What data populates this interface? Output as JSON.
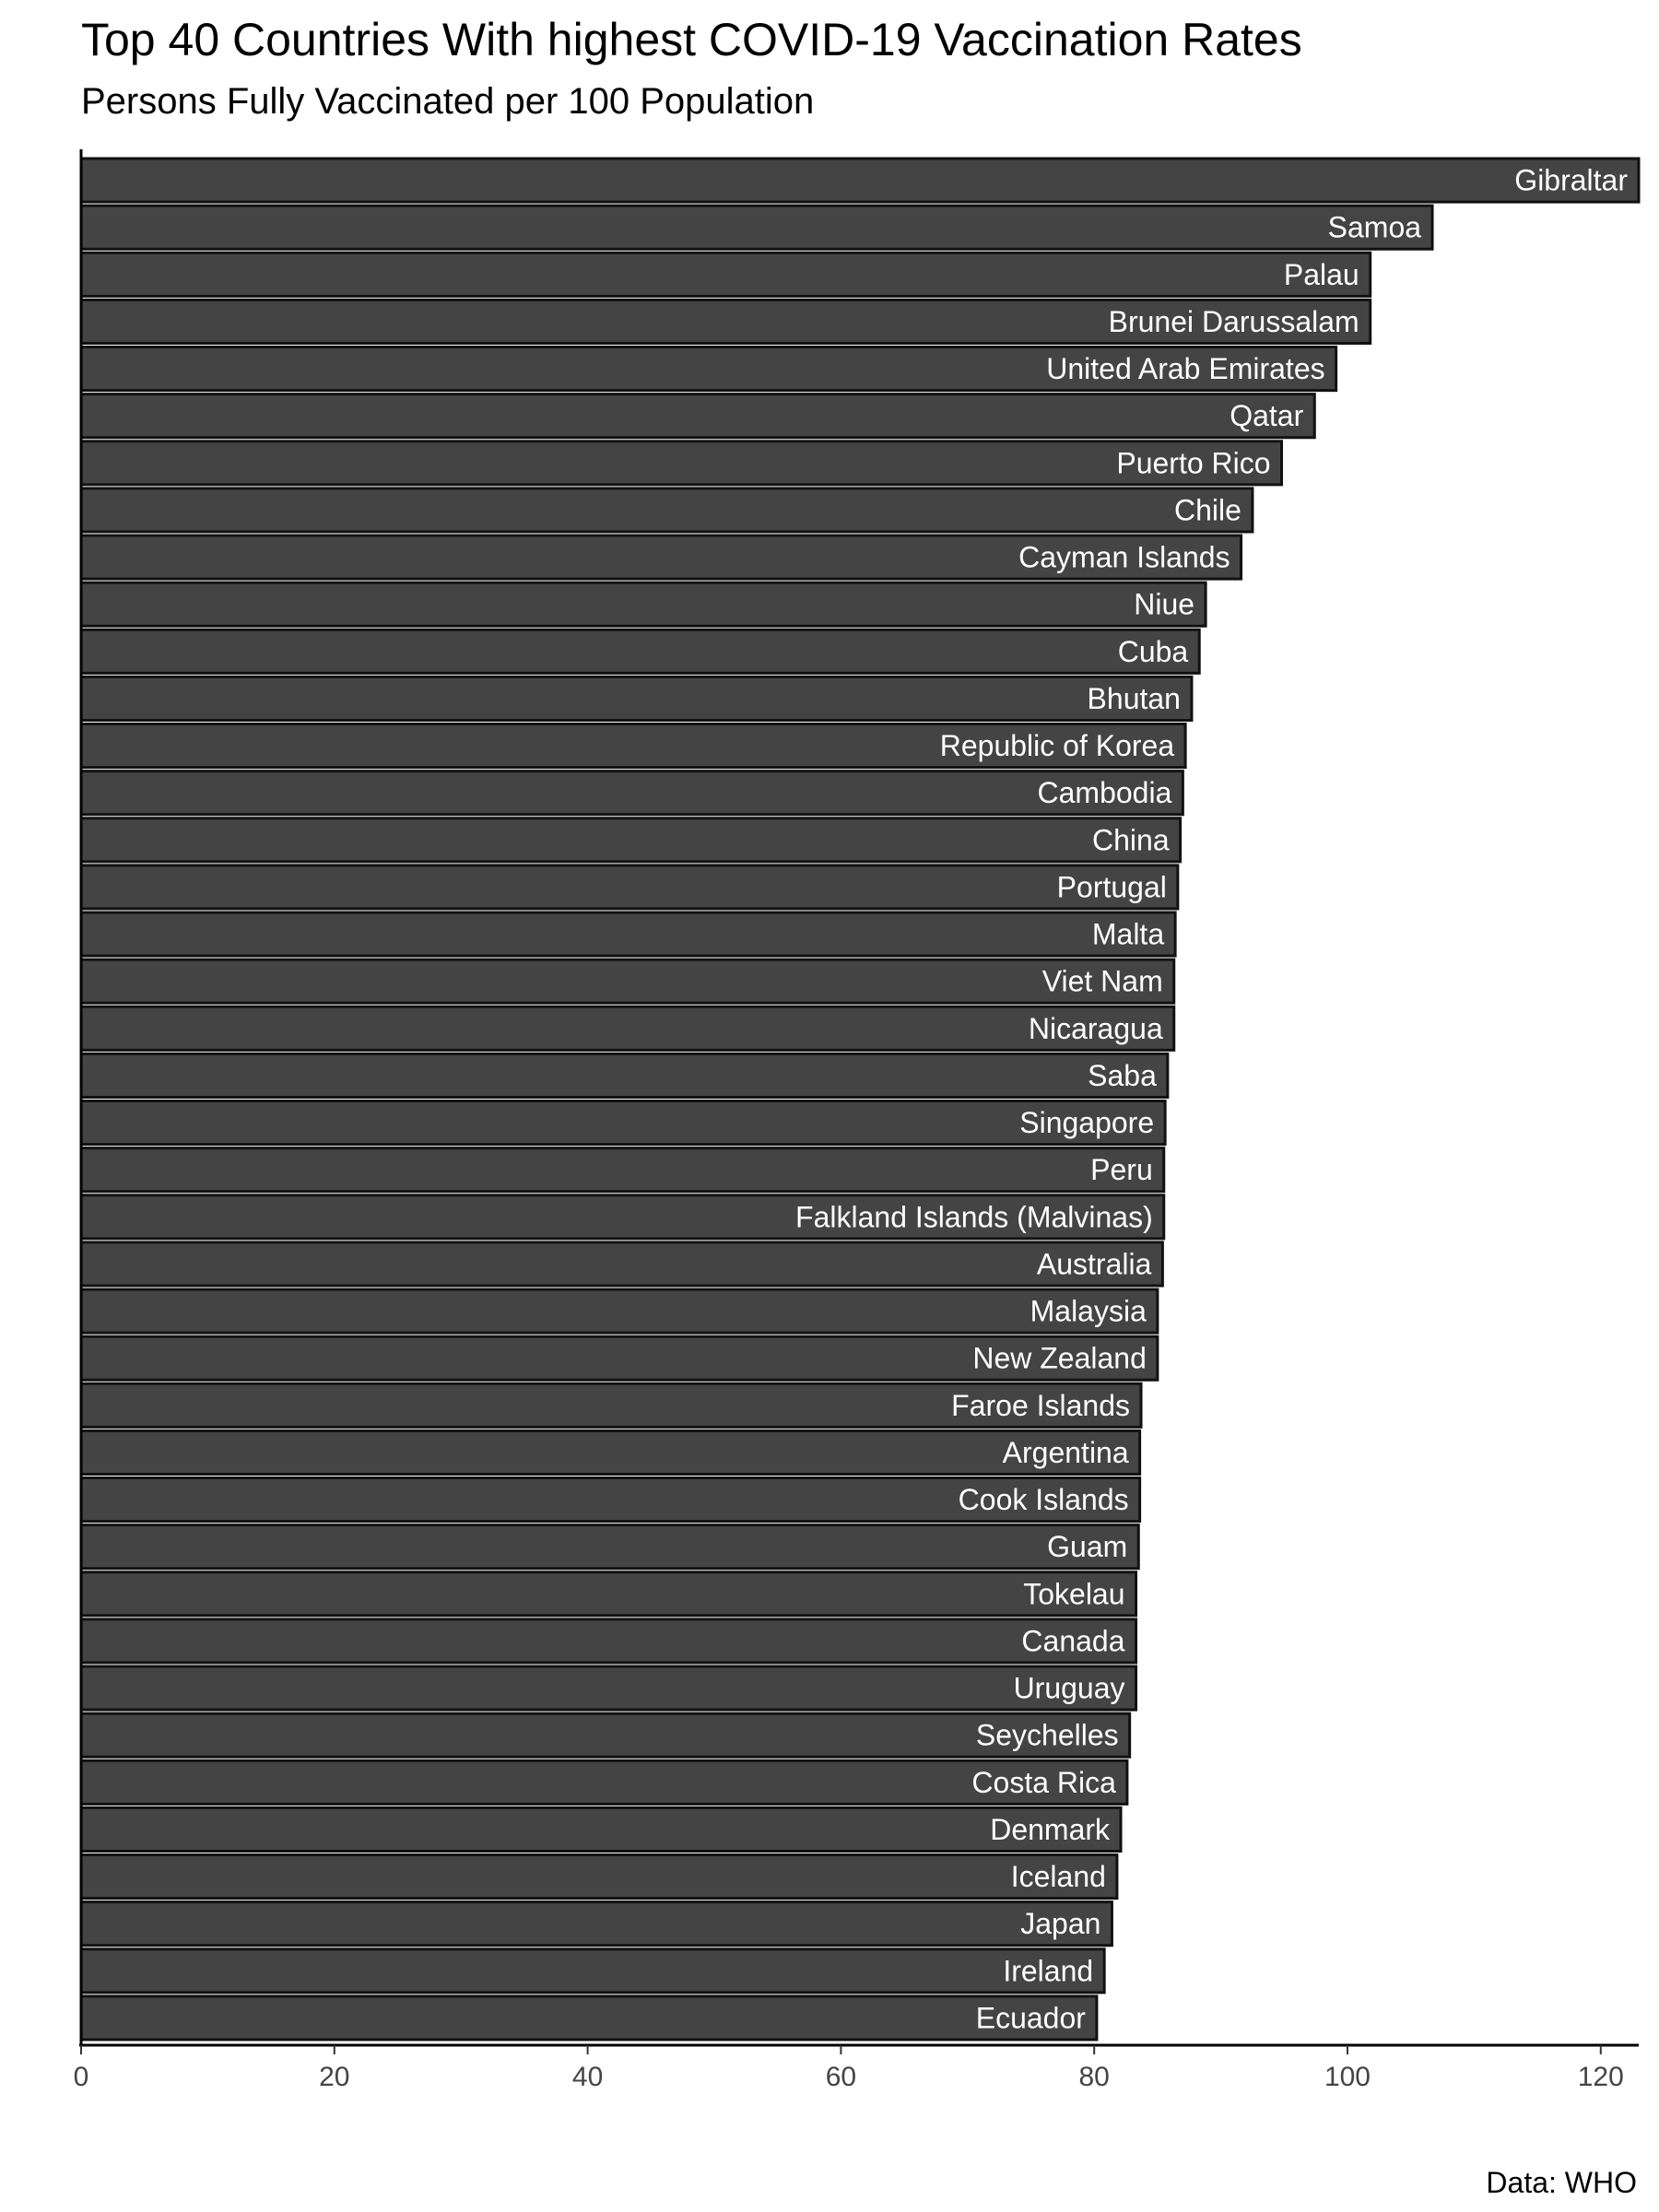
{
  "chart_data": {
    "type": "bar",
    "orientation": "horizontal",
    "title": "Top 40 Countries With highest COVID-19 Vaccination Rates",
    "subtitle": "Persons Fully Vaccinated per 100 Population",
    "caption": "Data: WHO",
    "xlim": [
      0,
      123
    ],
    "xticks": [
      0,
      20,
      40,
      60,
      80,
      100,
      120
    ],
    "grid": false,
    "bar_color": "#444444",
    "bar_edge_color": "#111111",
    "label_color": "#ffffff",
    "categories": [
      "Gibraltar",
      "Samoa",
      "Palau",
      "Brunei Darussalam",
      "United Arab Emirates",
      "Qatar",
      "Puerto Rico",
      "Chile",
      "Cayman Islands",
      "Niue",
      "Cuba",
      "Bhutan",
      "Republic of Korea",
      "Cambodia",
      "China",
      "Portugal",
      "Malta",
      "Viet Nam",
      "Nicaragua",
      "Saba",
      "Singapore",
      "Peru",
      "Falkland Islands (Malvinas)",
      "Australia",
      "Malaysia",
      "New Zealand",
      "Faroe Islands",
      "Argentina",
      "Cook Islands",
      "Guam",
      "Tokelau",
      "Canada",
      "Uruguay",
      "Seychelles",
      "Costa Rica",
      "Denmark",
      "Iceland",
      "Japan",
      "Ireland",
      "Ecuador"
    ],
    "values": [
      123.0,
      106.7,
      101.8,
      101.8,
      99.1,
      97.4,
      94.8,
      92.5,
      91.6,
      88.8,
      88.3,
      87.7,
      87.2,
      87.0,
      86.8,
      86.6,
      86.4,
      86.3,
      86.3,
      85.8,
      85.6,
      85.5,
      85.5,
      85.4,
      85.0,
      85.0,
      83.7,
      83.6,
      83.6,
      83.5,
      83.3,
      83.3,
      83.3,
      82.8,
      82.6,
      82.1,
      81.8,
      81.4,
      80.8,
      80.2
    ]
  }
}
